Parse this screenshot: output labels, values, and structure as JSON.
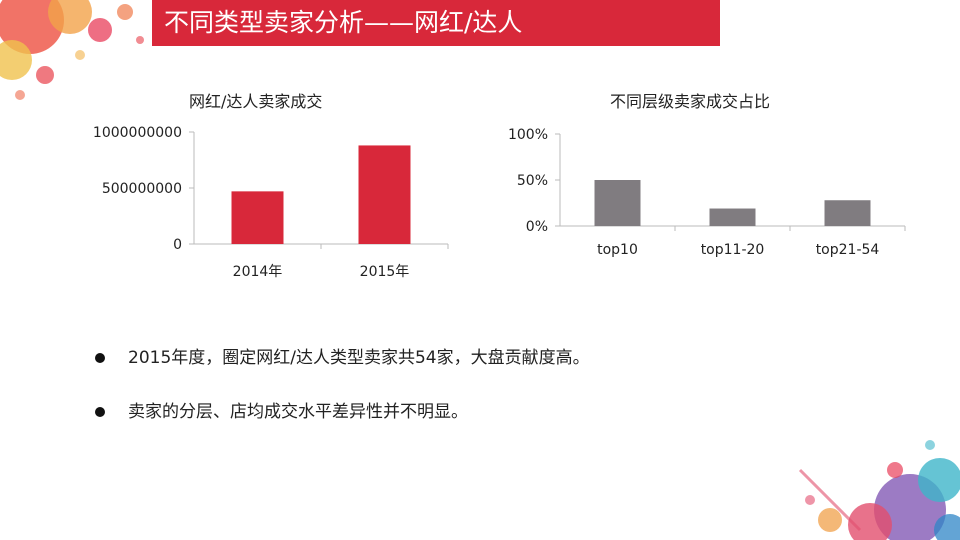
{
  "slide": {
    "title": "不同类型卖家分析——网红/达人"
  },
  "chart_data": [
    {
      "type": "bar",
      "title": "网红/达人卖家成交",
      "categories": [
        "2014年",
        "2015年"
      ],
      "values": [
        470000000,
        880000000
      ],
      "ylim": [
        0,
        1000000000
      ],
      "yticks": [
        0,
        500000000,
        1000000000
      ],
      "ytick_labels": [
        "0",
        "500000000",
        "1000000000"
      ],
      "color": "#d8283a",
      "grid": false,
      "legend": "none"
    },
    {
      "type": "bar",
      "title": "不同层级卖家成交占比",
      "categories": [
        "top10",
        "top11-20",
        "top21-54"
      ],
      "values": [
        0.5,
        0.19,
        0.28
      ],
      "ylim": [
        0,
        1
      ],
      "yticks": [
        0,
        0.5,
        1
      ],
      "ytick_labels": [
        "0%",
        "50%",
        "100%"
      ],
      "color": "#807c80",
      "grid": false,
      "legend": "none"
    }
  ],
  "bullets": [
    "2015年度，圈定网红/达人类型卖家共54家，大盘贡献度高。",
    "卖家的分层、店均成交水平差异性并不明显。"
  ]
}
